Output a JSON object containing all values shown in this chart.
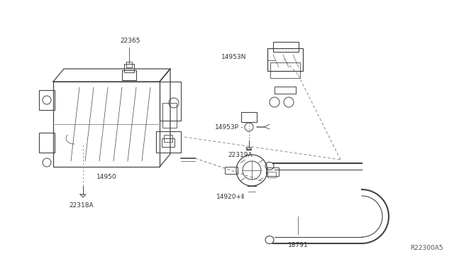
{
  "bg_color": "#ffffff",
  "title_code": "R22300A5",
  "line_color": "#444444",
  "text_color": "#333333",
  "label_fontsize": 6.5,
  "dashes_leader": [
    3,
    2
  ],
  "dashes_routing": [
    4,
    3
  ]
}
